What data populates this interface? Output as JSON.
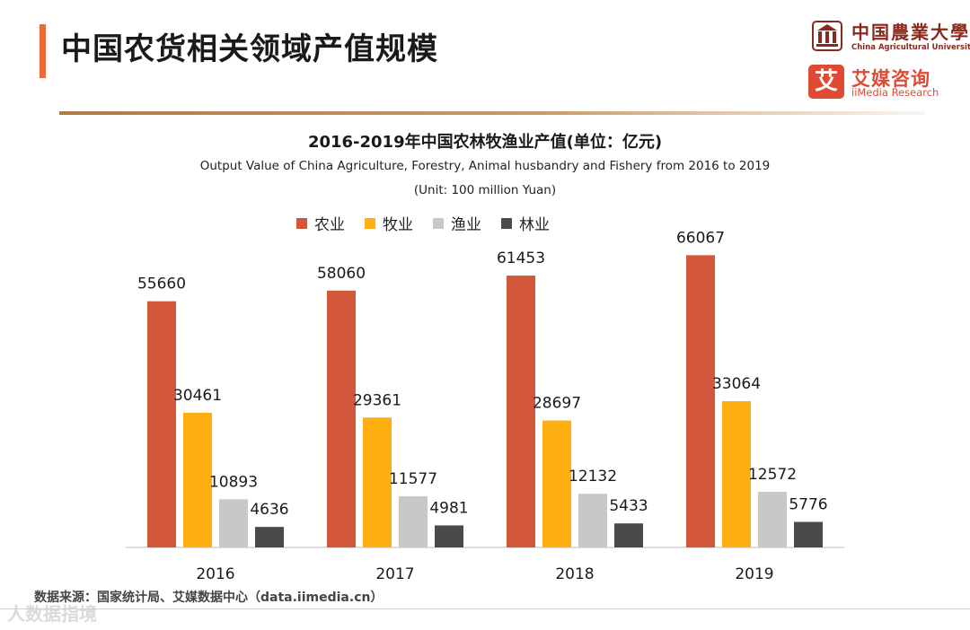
{
  "page": {
    "title": "中国农货相关领域产值规模",
    "accent_color": "#ef6a3a",
    "source_note": "数据来源：国家统计局、艾媒数据中心（data.iimedia.cn）",
    "watermark": "人数据指境"
  },
  "logos": {
    "university_cn": "中国農業大學",
    "university_en": "China Agricultural University",
    "iimedia_mark": "艾",
    "iimedia_cn": "艾媒咨询",
    "iimedia_en": "iiMedia Research",
    "university_color": "#8a2a1e",
    "iimedia_color": "#e04a35"
  },
  "chart_data": {
    "type": "bar",
    "title": "2016-2019年中国农林牧渔业产值(单位：亿元)",
    "subtitle": "Output Value of China Agriculture, Forestry, Animal husbandry and Fishery from 2016 to 2019",
    "unit_note": "(Unit: 100 million Yuan)",
    "categories": [
      "2016",
      "2017",
      "2018",
      "2019"
    ],
    "series": [
      {
        "name": "农业",
        "color": "#d3573b",
        "values": [
          55660,
          58060,
          61453,
          66067
        ]
      },
      {
        "name": "牧业",
        "color": "#fdb00f",
        "values": [
          30461,
          29361,
          28697,
          33064
        ]
      },
      {
        "name": "渔业",
        "color": "#c8c8c8",
        "values": [
          10893,
          11577,
          12132,
          12572
        ]
      },
      {
        "name": "林业",
        "color": "#4a4a4a",
        "values": [
          4636,
          4981,
          5433,
          5776
        ]
      }
    ],
    "ylim": [
      0,
      70000
    ],
    "grid": false,
    "legend_position": "top"
  }
}
